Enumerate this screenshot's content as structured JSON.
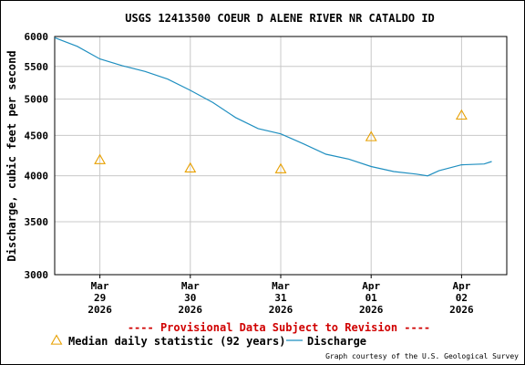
{
  "chart_data": {
    "type": "line",
    "title": "USGS 12413500 COEUR D ALENE RIVER NR CATALDO ID",
    "ylabel": "Discharge, cubic feet per second",
    "xlabel": "",
    "y_scale": "log",
    "ylim": [
      3000,
      6000
    ],
    "y_ticks": [
      3000,
      3500,
      4000,
      4500,
      5000,
      5500,
      6000
    ],
    "xlim": [
      "2026-03-28 12:00",
      "2026-04-02 12:00"
    ],
    "x_ticks": [
      {
        "date": "2026-03-29 00:00",
        "month": "Mar",
        "day": "29",
        "year": "2026"
      },
      {
        "date": "2026-03-30 00:00",
        "month": "Mar",
        "day": "30",
        "year": "2026"
      },
      {
        "date": "2026-03-31 00:00",
        "month": "Mar",
        "day": "31",
        "year": "2026"
      },
      {
        "date": "2026-04-01 00:00",
        "month": "Apr",
        "day": "01",
        "year": "2026"
      },
      {
        "date": "2026-04-02 00:00",
        "month": "Apr",
        "day": "02",
        "year": "2026"
      }
    ],
    "grid": true,
    "series": [
      {
        "name": "Discharge",
        "color": "#1f8fc0",
        "style": "line",
        "points": [
          [
            "2026-03-28 12:00",
            5980
          ],
          [
            "2026-03-28 18:00",
            5830
          ],
          [
            "2026-03-29 00:00",
            5620
          ],
          [
            "2026-03-29 06:00",
            5510
          ],
          [
            "2026-03-29 12:00",
            5420
          ],
          [
            "2026-03-29 18:00",
            5300
          ],
          [
            "2026-03-30 00:00",
            5130
          ],
          [
            "2026-03-30 06:00",
            4950
          ],
          [
            "2026-03-30 12:00",
            4740
          ],
          [
            "2026-03-30 18:00",
            4590
          ],
          [
            "2026-03-31 00:00",
            4520
          ],
          [
            "2026-03-31 06:00",
            4390
          ],
          [
            "2026-03-31 12:00",
            4260
          ],
          [
            "2026-03-31 18:00",
            4200
          ],
          [
            "2026-04-01 00:00",
            4110
          ],
          [
            "2026-04-01 06:00",
            4050
          ],
          [
            "2026-04-01 12:00",
            4020
          ],
          [
            "2026-04-01 15:00",
            4000
          ],
          [
            "2026-04-01 18:00",
            4060
          ],
          [
            "2026-04-02 00:00",
            4130
          ],
          [
            "2026-04-02 06:00",
            4140
          ],
          [
            "2026-04-02 08:00",
            4170
          ]
        ]
      },
      {
        "name": "Median daily statistic (92 years)",
        "color": "#e8a000",
        "style": "triangle",
        "points": [
          [
            "2026-03-29 00:00",
            4190
          ],
          [
            "2026-03-30 00:00",
            4090
          ],
          [
            "2026-03-31 00:00",
            4080
          ],
          [
            "2026-04-01 00:00",
            4480
          ],
          [
            "2026-04-02 00:00",
            4770
          ]
        ]
      }
    ],
    "annotation": "---- Provisional Data Subject to Revision ----",
    "annotation_color": "#d00000",
    "legend_position": "bottom"
  },
  "credit": "Graph courtesy of the U.S. Geological Survey",
  "colors": {
    "grid": "#c8c8c8",
    "axis": "#000000",
    "text": "#000000"
  }
}
